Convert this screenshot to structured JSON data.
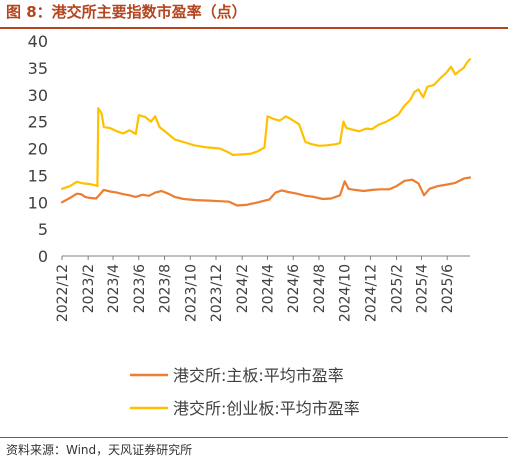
{
  "figure": {
    "title": "图 8：港交所主要指数市盈率（点）",
    "source": "资料来源：Wind，天风证券研究所"
  },
  "colors": {
    "title": "#b4451f",
    "series_main": "#ed7d31",
    "series_gem": "#ffc000",
    "axis": "#7f7f7f",
    "text": "#404040"
  },
  "chart_data": {
    "type": "line",
    "title": "",
    "xlabel": "",
    "ylabel": "",
    "ylim": [
      0,
      40
    ],
    "yticks": [
      0,
      5,
      10,
      15,
      20,
      25,
      30,
      35,
      40
    ],
    "grid": false,
    "legend_position": "bottom",
    "x_tick_labels": [
      "2022/12",
      "2023/2",
      "2023/4",
      "2023/6",
      "2023/8",
      "2023/10",
      "2023/12",
      "2024/2",
      "2024/4",
      "2024/6",
      "2024/8",
      "2024/10",
      "2024/12",
      "2025/2",
      "2025/4",
      "2025/6"
    ],
    "x_range": [
      "2022-12-01",
      "2025-07-25"
    ],
    "series": [
      {
        "name": "港交所:主板:平均市盈率",
        "color": "#ed7d31",
        "points": [
          [
            "2022-12-01",
            10.0
          ],
          [
            "2022-12-20",
            10.8
          ],
          [
            "2023-01-05",
            11.6
          ],
          [
            "2023-01-15",
            11.5
          ],
          [
            "2023-01-25",
            11.0
          ],
          [
            "2023-02-05",
            10.8
          ],
          [
            "2023-02-20",
            10.7
          ],
          [
            "2023-03-01",
            11.5
          ],
          [
            "2023-03-10",
            12.3
          ],
          [
            "2023-03-25",
            12.0
          ],
          [
            "2023-04-10",
            11.8
          ],
          [
            "2023-04-25",
            11.5
          ],
          [
            "2023-05-10",
            11.3
          ],
          [
            "2023-05-25",
            11.0
          ],
          [
            "2023-06-10",
            11.4
          ],
          [
            "2023-06-25",
            11.2
          ],
          [
            "2023-07-10",
            11.8
          ],
          [
            "2023-07-25",
            12.1
          ],
          [
            "2023-08-10",
            11.6
          ],
          [
            "2023-08-25",
            11.0
          ],
          [
            "2023-09-15",
            10.6
          ],
          [
            "2023-10-15",
            10.4
          ],
          [
            "2023-11-15",
            10.3
          ],
          [
            "2023-12-10",
            10.2
          ],
          [
            "2024-01-01",
            10.1
          ],
          [
            "2024-01-20",
            9.4
          ],
          [
            "2024-02-10",
            9.5
          ],
          [
            "2024-03-05",
            9.9
          ],
          [
            "2024-03-20",
            10.2
          ],
          [
            "2024-04-05",
            10.5
          ],
          [
            "2024-04-20",
            11.8
          ],
          [
            "2024-05-05",
            12.2
          ],
          [
            "2024-05-20",
            11.9
          ],
          [
            "2024-06-10",
            11.6
          ],
          [
            "2024-06-30",
            11.2
          ],
          [
            "2024-07-20",
            11.0
          ],
          [
            "2024-08-10",
            10.6
          ],
          [
            "2024-08-30",
            10.7
          ],
          [
            "2024-09-20",
            11.3
          ],
          [
            "2024-10-01",
            13.9
          ],
          [
            "2024-10-10",
            12.5
          ],
          [
            "2024-10-25",
            12.3
          ],
          [
            "2024-11-15",
            12.1
          ],
          [
            "2024-12-05",
            12.3
          ],
          [
            "2024-12-25",
            12.4
          ],
          [
            "2025-01-15",
            12.4
          ],
          [
            "2025-02-01",
            13.0
          ],
          [
            "2025-02-20",
            14.0
          ],
          [
            "2025-03-10",
            14.2
          ],
          [
            "2025-03-25",
            13.5
          ],
          [
            "2025-04-07",
            11.3
          ],
          [
            "2025-04-20",
            12.5
          ],
          [
            "2025-05-10",
            13.0
          ],
          [
            "2025-06-01",
            13.3
          ],
          [
            "2025-06-20",
            13.6
          ],
          [
            "2025-07-10",
            14.4
          ],
          [
            "2025-07-25",
            14.6
          ]
        ]
      },
      {
        "name": "港交所:创业板:平均市盈率",
        "color": "#ffc000",
        "points": [
          [
            "2022-12-01",
            12.5
          ],
          [
            "2022-12-20",
            13.0
          ],
          [
            "2023-01-05",
            13.8
          ],
          [
            "2023-01-20",
            13.5
          ],
          [
            "2023-02-05",
            13.4
          ],
          [
            "2023-02-20",
            13.1
          ],
          [
            "2023-02-23",
            13.0
          ],
          [
            "2023-02-25",
            27.5
          ],
          [
            "2023-03-05",
            26.5
          ],
          [
            "2023-03-10",
            24.0
          ],
          [
            "2023-03-25",
            23.8
          ],
          [
            "2023-04-10",
            23.2
          ],
          [
            "2023-04-25",
            22.8
          ],
          [
            "2023-05-10",
            23.4
          ],
          [
            "2023-05-25",
            22.7
          ],
          [
            "2023-06-01",
            26.2
          ],
          [
            "2023-06-15",
            25.9
          ],
          [
            "2023-06-30",
            25.0
          ],
          [
            "2023-07-10",
            26.0
          ],
          [
            "2023-07-20",
            24.0
          ],
          [
            "2023-08-05",
            23.0
          ],
          [
            "2023-08-25",
            21.7
          ],
          [
            "2023-09-15",
            21.2
          ],
          [
            "2023-10-10",
            20.6
          ],
          [
            "2023-11-10",
            20.2
          ],
          [
            "2023-12-10",
            20.0
          ],
          [
            "2023-12-25",
            19.5
          ],
          [
            "2024-01-10",
            18.8
          ],
          [
            "2024-02-01",
            18.9
          ],
          [
            "2024-02-20",
            19.0
          ],
          [
            "2024-03-10",
            19.5
          ],
          [
            "2024-03-25",
            20.2
          ],
          [
            "2024-04-01",
            26.0
          ],
          [
            "2024-04-15",
            25.5
          ],
          [
            "2024-04-30",
            25.2
          ],
          [
            "2024-05-15",
            26.0
          ],
          [
            "2024-05-30",
            25.3
          ],
          [
            "2024-06-15",
            24.5
          ],
          [
            "2024-06-30",
            21.2
          ],
          [
            "2024-07-15",
            20.8
          ],
          [
            "2024-08-01",
            20.5
          ],
          [
            "2024-08-20",
            20.6
          ],
          [
            "2024-09-10",
            20.8
          ],
          [
            "2024-09-20",
            21.0
          ],
          [
            "2024-09-28",
            25.0
          ],
          [
            "2024-10-05",
            23.8
          ],
          [
            "2024-10-20",
            23.5
          ],
          [
            "2024-11-05",
            23.2
          ],
          [
            "2024-11-20",
            23.7
          ],
          [
            "2024-12-05",
            23.6
          ],
          [
            "2024-12-20",
            24.4
          ],
          [
            "2025-01-05",
            24.9
          ],
          [
            "2025-01-20",
            25.5
          ],
          [
            "2025-02-05",
            26.3
          ],
          [
            "2025-02-20",
            28.0
          ],
          [
            "2025-03-05",
            29.0
          ],
          [
            "2025-03-15",
            30.5
          ],
          [
            "2025-03-25",
            31.0
          ],
          [
            "2025-04-05",
            29.5
          ],
          [
            "2025-04-15",
            31.5
          ],
          [
            "2025-04-30",
            31.8
          ],
          [
            "2025-05-15",
            33.0
          ],
          [
            "2025-05-30",
            34.1
          ],
          [
            "2025-06-10",
            35.2
          ],
          [
            "2025-06-20",
            33.8
          ],
          [
            "2025-07-01",
            34.5
          ],
          [
            "2025-07-10",
            35.0
          ],
          [
            "2025-07-18",
            36.0
          ],
          [
            "2025-07-25",
            36.6
          ]
        ]
      }
    ]
  }
}
